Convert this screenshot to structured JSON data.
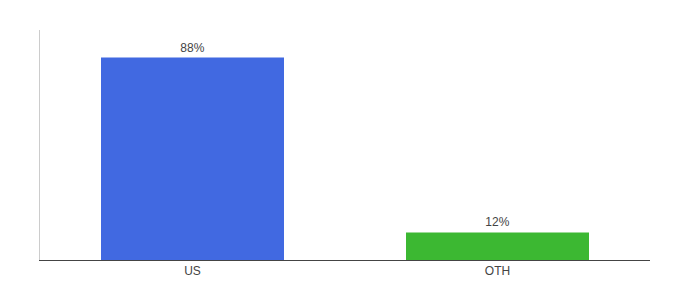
{
  "chart_data": {
    "type": "bar",
    "categories": [
      "US",
      "OTH"
    ],
    "values": [
      88,
      12
    ],
    "colors": [
      "#4169e1",
      "#3cb832"
    ],
    "value_labels": [
      "88%",
      "12%"
    ],
    "data_labels": true,
    "ylim": [
      0,
      100
    ],
    "tick_labels": "x",
    "grid": false
  }
}
